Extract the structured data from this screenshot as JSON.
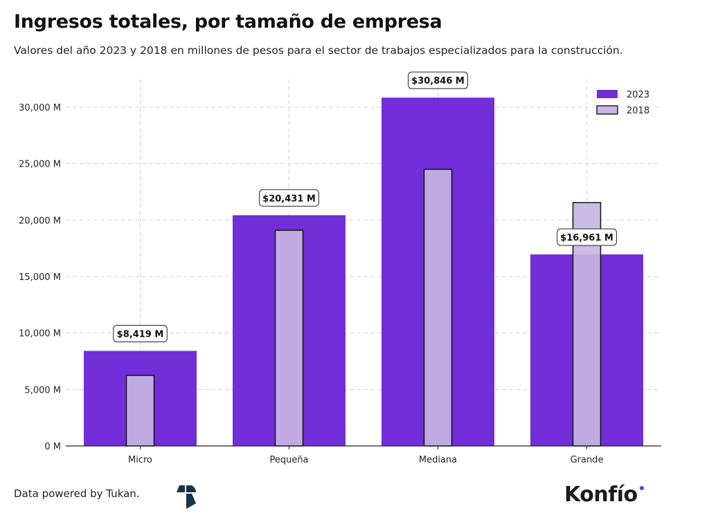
{
  "chart_data": {
    "type": "bar",
    "title": "Ingresos totales, por tamaño de empresa",
    "subtitle": "Valores del año 2023 y 2018 en millones de pesos para el sector de trabajos especializados para la construcción.",
    "categories": [
      "Micro",
      "Pequeña",
      "Mediana",
      "Grande"
    ],
    "series": [
      {
        "name": "2023",
        "values": [
          8419,
          20431,
          30846,
          16961
        ],
        "color": "#722ed9",
        "labels": [
          "$8,419 M",
          "$20,431 M",
          "$30,846 M",
          "$16,961 M"
        ]
      },
      {
        "name": "2018",
        "values": [
          6250,
          19100,
          24500,
          21550
        ],
        "color": "#c5b6e2"
      }
    ],
    "yticks": [
      0,
      5000,
      10000,
      15000,
      20000,
      25000,
      30000
    ],
    "ytick_labels": [
      "0 M",
      "5,000 M",
      "10,000 M",
      "15,000 M",
      "20,000 M",
      "25,000 M",
      "30,000 M"
    ],
    "ylim": [
      0,
      32500
    ],
    "grid": true,
    "legend_position": "top-right"
  },
  "footer": {
    "credit": "Data powered by Tukan.",
    "brand": "Konfío"
  }
}
